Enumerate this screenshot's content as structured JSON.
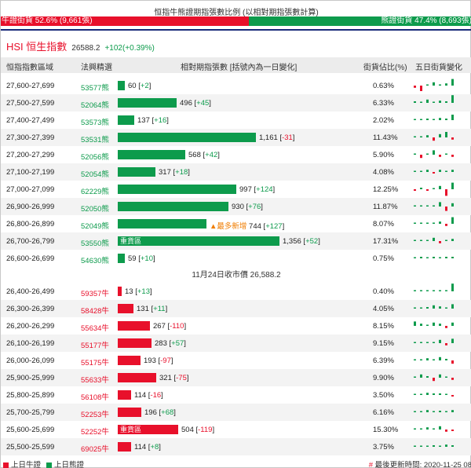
{
  "header": {
    "title": "恒指牛熊證期指張數比例 (以相對期指張數計算)",
    "bull_text": "牛證街貨 52.6% (9,661張)",
    "bear_text": "熊證街貨 47.4% (8,693張)",
    "bull_ratio": 52.6
  },
  "index": {
    "name": "HSI 恒生指數",
    "value": "26588.2",
    "change": "+102(+0.39%)"
  },
  "columns": {
    "range": "恒指指數區域",
    "code": "法興精選",
    "qty": "相對期指張數 [括號內為一日變化]",
    "pct": "街貨佔比(%)",
    "five_day": "五日街貨變化"
  },
  "bear_rows": [
    {
      "range": "27,600-27,699",
      "code": "53577熊",
      "qty": "60",
      "chg": "+2",
      "pct": "0.63%",
      "spark": [
        -2,
        -5,
        0,
        3,
        0,
        2,
        6
      ]
    },
    {
      "range": "27,500-27,599",
      "code": "52064熊",
      "qty": "496",
      "chg": "+45",
      "pct": "6.33%",
      "spark": [
        1,
        0,
        3,
        0,
        2,
        1,
        7
      ]
    },
    {
      "range": "27,400-27,499",
      "code": "53573熊",
      "qty": "137",
      "chg": "+16",
      "pct": "2.02%",
      "spark": [
        0,
        0,
        1,
        0,
        2,
        1,
        5
      ]
    },
    {
      "range": "27,300-27,399",
      "code": "53531熊",
      "qty": "1,161",
      "chg": "-31",
      "pct": "11.43%",
      "spark": [
        0,
        0,
        2,
        -3,
        3,
        5,
        -2
      ]
    },
    {
      "range": "27,200-27,299",
      "code": "52056熊",
      "qty": "568",
      "chg": "+42",
      "pct": "5.90%",
      "spark": [
        0,
        -3,
        0,
        4,
        -2,
        0,
        -2
      ]
    },
    {
      "range": "27,100-27,199",
      "code": "52054熊",
      "qty": "317",
      "chg": "+18",
      "pct": "4.08%",
      "spark": [
        0,
        0,
        2,
        -1,
        2,
        0,
        2
      ]
    },
    {
      "range": "27,000-27,099",
      "code": "62229熊",
      "qty": "997",
      "chg": "+124",
      "pct": "12.25%",
      "spark": [
        -1,
        1,
        -1,
        0,
        3,
        -6,
        6
      ]
    },
    {
      "range": "26,900-26,999",
      "code": "52050熊",
      "qty": "930",
      "chg": "+76",
      "pct": "11.87%",
      "spark": [
        0,
        0,
        0,
        0,
        4,
        -4,
        3
      ]
    },
    {
      "range": "26,800-26,899",
      "code": "52049熊",
      "qty": "744",
      "chg": "+127",
      "pct": "8.07%",
      "spark": [
        0,
        0,
        0,
        0,
        2,
        -2,
        6
      ],
      "tag": "▲最多新增"
    },
    {
      "range": "26,700-26,799",
      "code": "53550熊",
      "qty": "1,356",
      "chg": "+52",
      "pct": "17.31%",
      "spark": [
        0,
        0,
        0,
        3,
        -2,
        0,
        2
      ],
      "inner": "重貨區"
    },
    {
      "range": "26,600-26,699",
      "code": "54630熊",
      "qty": "59",
      "chg": "+10",
      "pct": "0.75%",
      "spark": [
        0,
        1,
        0,
        1,
        0,
        1,
        1
      ]
    }
  ],
  "separator": "11月24日收市價 26,588.2",
  "bull_rows": [
    {
      "range": "26,400-26,499",
      "code": "59357牛",
      "qty": "13",
      "chg": "+13",
      "pct": "0.40%",
      "spark": [
        0,
        0,
        0,
        0,
        0,
        0,
        7
      ]
    },
    {
      "range": "26,300-26,399",
      "code": "58428牛",
      "qty": "131",
      "chg": "+11",
      "pct": "4.05%",
      "spark": [
        0,
        0,
        1,
        3,
        2,
        0,
        4
      ]
    },
    {
      "range": "26,200-26,299",
      "code": "55634牛",
      "qty": "267",
      "chg": "-110",
      "pct": "8.15%",
      "spark": [
        4,
        2,
        0,
        3,
        2,
        -2,
        3
      ]
    },
    {
      "range": "26,100-26,199",
      "code": "55177牛",
      "qty": "283",
      "chg": "+57",
      "pct": "9.15%",
      "spark": [
        0,
        0,
        0,
        0,
        3,
        -2,
        4
      ]
    },
    {
      "range": "26,000-26,099",
      "code": "55175牛",
      "qty": "193",
      "chg": "-97",
      "pct": "6.39%",
      "spark": [
        0,
        0,
        2,
        0,
        3,
        1,
        -3
      ]
    },
    {
      "range": "25,900-25,999",
      "code": "55633牛",
      "qty": "321",
      "chg": "-75",
      "pct": "9.90%",
      "spark": [
        0,
        3,
        1,
        -3,
        3,
        0,
        -2
      ]
    },
    {
      "range": "25,800-25,899",
      "code": "56108牛",
      "qty": "114",
      "chg": "-16",
      "pct": "3.50%",
      "spark": [
        0,
        0,
        2,
        1,
        1,
        0,
        -1
      ]
    },
    {
      "range": "25,700-25,799",
      "code": "52253牛",
      "qty": "196",
      "chg": "+68",
      "pct": "6.16%",
      "spark": [
        0,
        0,
        2,
        0,
        1,
        0,
        2
      ]
    },
    {
      "range": "25,600-25,699",
      "code": "52252牛",
      "qty": "504",
      "chg": "-119",
      "pct": "15.30%",
      "spark": [
        0,
        0,
        2,
        0,
        3,
        -2,
        -1
      ],
      "inner": "重貨區"
    },
    {
      "range": "25,500-25,599",
      "code": "69025牛",
      "qty": "114",
      "chg": "+8",
      "pct": "3.75%",
      "spark": [
        0,
        0,
        0,
        1,
        0,
        2,
        1
      ]
    }
  ],
  "footer": {
    "bull_legend": "上日牛證",
    "bear_legend": "上日熊證",
    "hash": "#",
    "updated": "最後更新時間: 2020-11-25 08"
  },
  "colors": {
    "bull": "#e8102b",
    "bear": "#0d9b4c",
    "accent": "#1a2a7a",
    "new_tag": "#f07d00"
  }
}
